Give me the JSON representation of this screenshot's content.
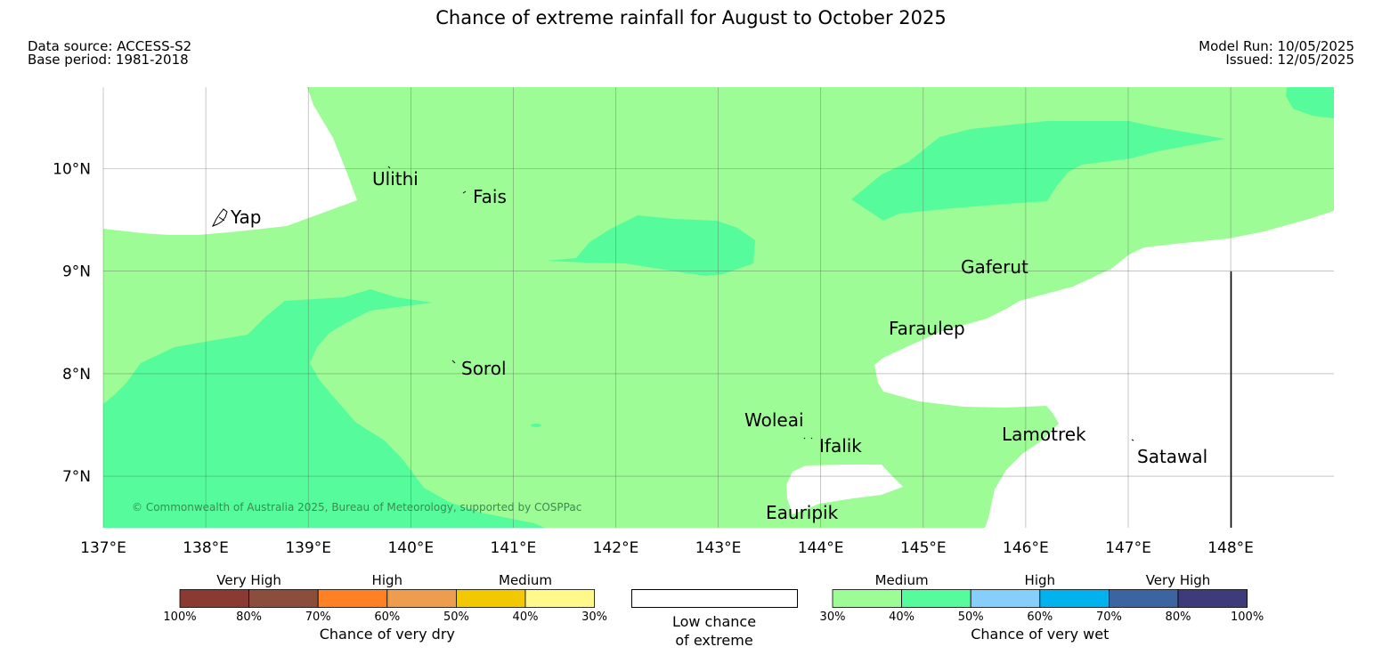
{
  "header": {
    "title": "Chance of extreme rainfall for August to October 2025",
    "data_source": "Data source: ACCESS-S2",
    "base_period": "Base period: 1981-2018",
    "model_run": "Model Run: 10/05/2025",
    "issued": "Issued: 12/05/2025"
  },
  "map": {
    "copyright": "© Commonwealth of Australia 2025, Bureau of Meteorology, supported by COSPPac",
    "lat_labels": [
      "10°N",
      "9°N",
      "8°N",
      "7°N"
    ],
    "lon_labels": [
      "137°E",
      "138°E",
      "139°E",
      "140°E",
      "141°E",
      "142°E",
      "143°E",
      "144°E",
      "145°E",
      "146°E",
      "147°E",
      "148°E"
    ],
    "places": [
      "Ulithi",
      "Fais",
      "Yap",
      "Gaferut",
      "Faraulep",
      "Sorol",
      "Woleai",
      "Ifalik",
      "Lamotrek",
      "Satawal",
      "Eauripik"
    ],
    "colors": {
      "medium_wet": "#9efc96",
      "high_wet_40": "#56fc9c",
      "low_chance": "#ffffff"
    }
  },
  "legend": {
    "dry": {
      "categories": [
        "Very High",
        "High",
        "Medium"
      ],
      "colors": [
        "#8b3a33",
        "#8b4e3c",
        "#ff8126",
        "#ee9c4d",
        "#f2c800",
        "#fff98b"
      ],
      "ticks": [
        "100%",
        "80%",
        "70%",
        "60%",
        "50%",
        "40%",
        "30%"
      ],
      "caption": "Chance of very dry"
    },
    "low": {
      "caption_line1": "Low chance",
      "caption_line2": "of extreme"
    },
    "wet": {
      "categories": [
        "Medium",
        "High",
        "Very High"
      ],
      "colors": [
        "#9efc96",
        "#56fc9c",
        "#87cefa",
        "#00b2ee",
        "#3c64a0",
        "#3d3b7a"
      ],
      "ticks": [
        "30%",
        "40%",
        "50%",
        "60%",
        "70%",
        "80%",
        "100%"
      ],
      "caption": "Chance of very wet"
    }
  }
}
